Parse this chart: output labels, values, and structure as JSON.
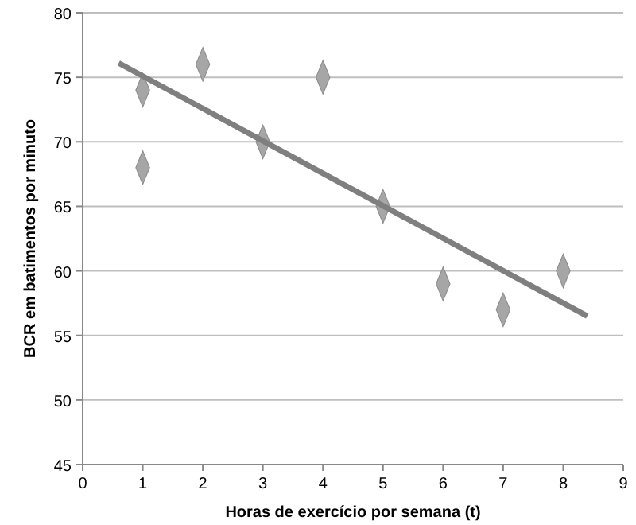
{
  "chart_data": {
    "type": "scatter",
    "xlabel": "Horas de exercício por semana (t)",
    "ylabel": "BCR em batimentos por minuto",
    "xlim": [
      0,
      9
    ],
    "xticks": [
      0,
      1,
      2,
      3,
      4,
      5,
      6,
      7,
      8,
      9
    ],
    "ylim": [
      45,
      80
    ],
    "yticks": [
      45,
      50,
      55,
      60,
      65,
      70,
      75,
      80
    ],
    "grid": "y",
    "series": [
      {
        "color": "#a6a6a6",
        "marker": "diamond",
        "x": [
          1,
          1,
          2,
          3,
          4,
          5,
          6,
          7,
          8
        ],
        "values": [
          74,
          68,
          76,
          70,
          75,
          65,
          59,
          57,
          60
        ]
      },
      {
        "type": "line",
        "color": "#7f7f7f",
        "line_style": "solid",
        "x": [
          0.6,
          8.4
        ],
        "values": [
          76.1,
          56.5
        ]
      }
    ]
  }
}
